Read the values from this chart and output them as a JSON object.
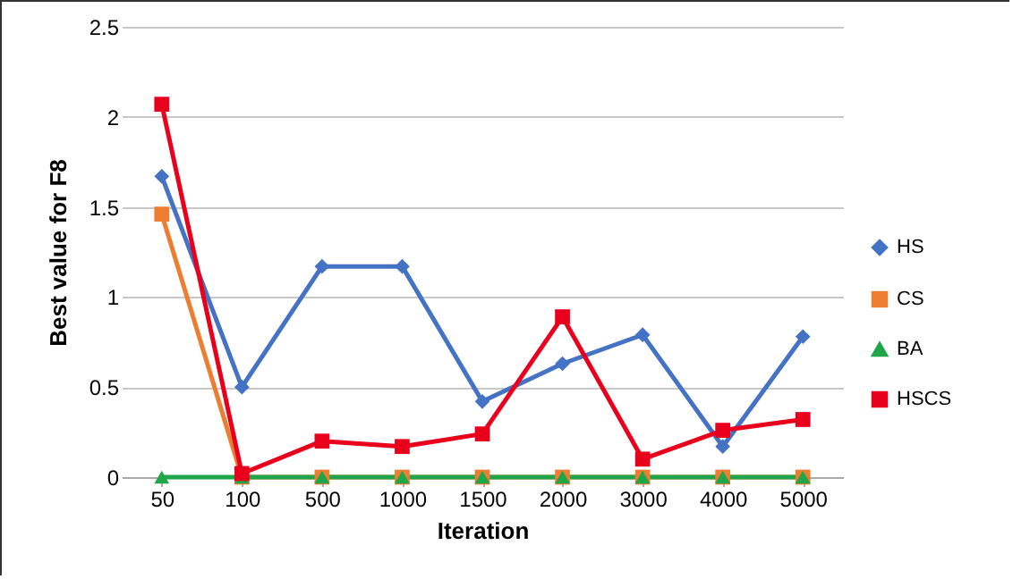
{
  "chart_data": {
    "type": "line",
    "xlabel": "Iteration",
    "ylabel": "Best value for F8",
    "categories": [
      "50",
      "100",
      "500",
      "1000",
      "1500",
      "2000",
      "3000",
      "4000",
      "5000"
    ],
    "series": [
      {
        "name": "HS",
        "color": "#4472c4",
        "marker": "diamond",
        "values": [
          1.67,
          0.5,
          1.17,
          1.17,
          0.42,
          0.63,
          0.79,
          0.17,
          0.78
        ]
      },
      {
        "name": "CS",
        "color": "#ed7d31",
        "marker": "square",
        "values": [
          1.46,
          0,
          0,
          0,
          0,
          0,
          0,
          0,
          0
        ]
      },
      {
        "name": "BA",
        "color": "#1fa64a",
        "marker": "triangle",
        "values": [
          0,
          0,
          0,
          0,
          0,
          0,
          0,
          0,
          0
        ]
      },
      {
        "name": "HSCS",
        "color": "#e8001c",
        "marker": "square",
        "values": [
          2.07,
          0.02,
          0.2,
          0.17,
          0.24,
          0.89,
          0.1,
          0.26,
          0.32
        ]
      }
    ],
    "ylim": [
      0,
      2.5
    ],
    "yticks": [
      0,
      0.5,
      1,
      1.5,
      2,
      2.5
    ],
    "grid": "y",
    "legend": "right",
    "line_style": "solid"
  }
}
